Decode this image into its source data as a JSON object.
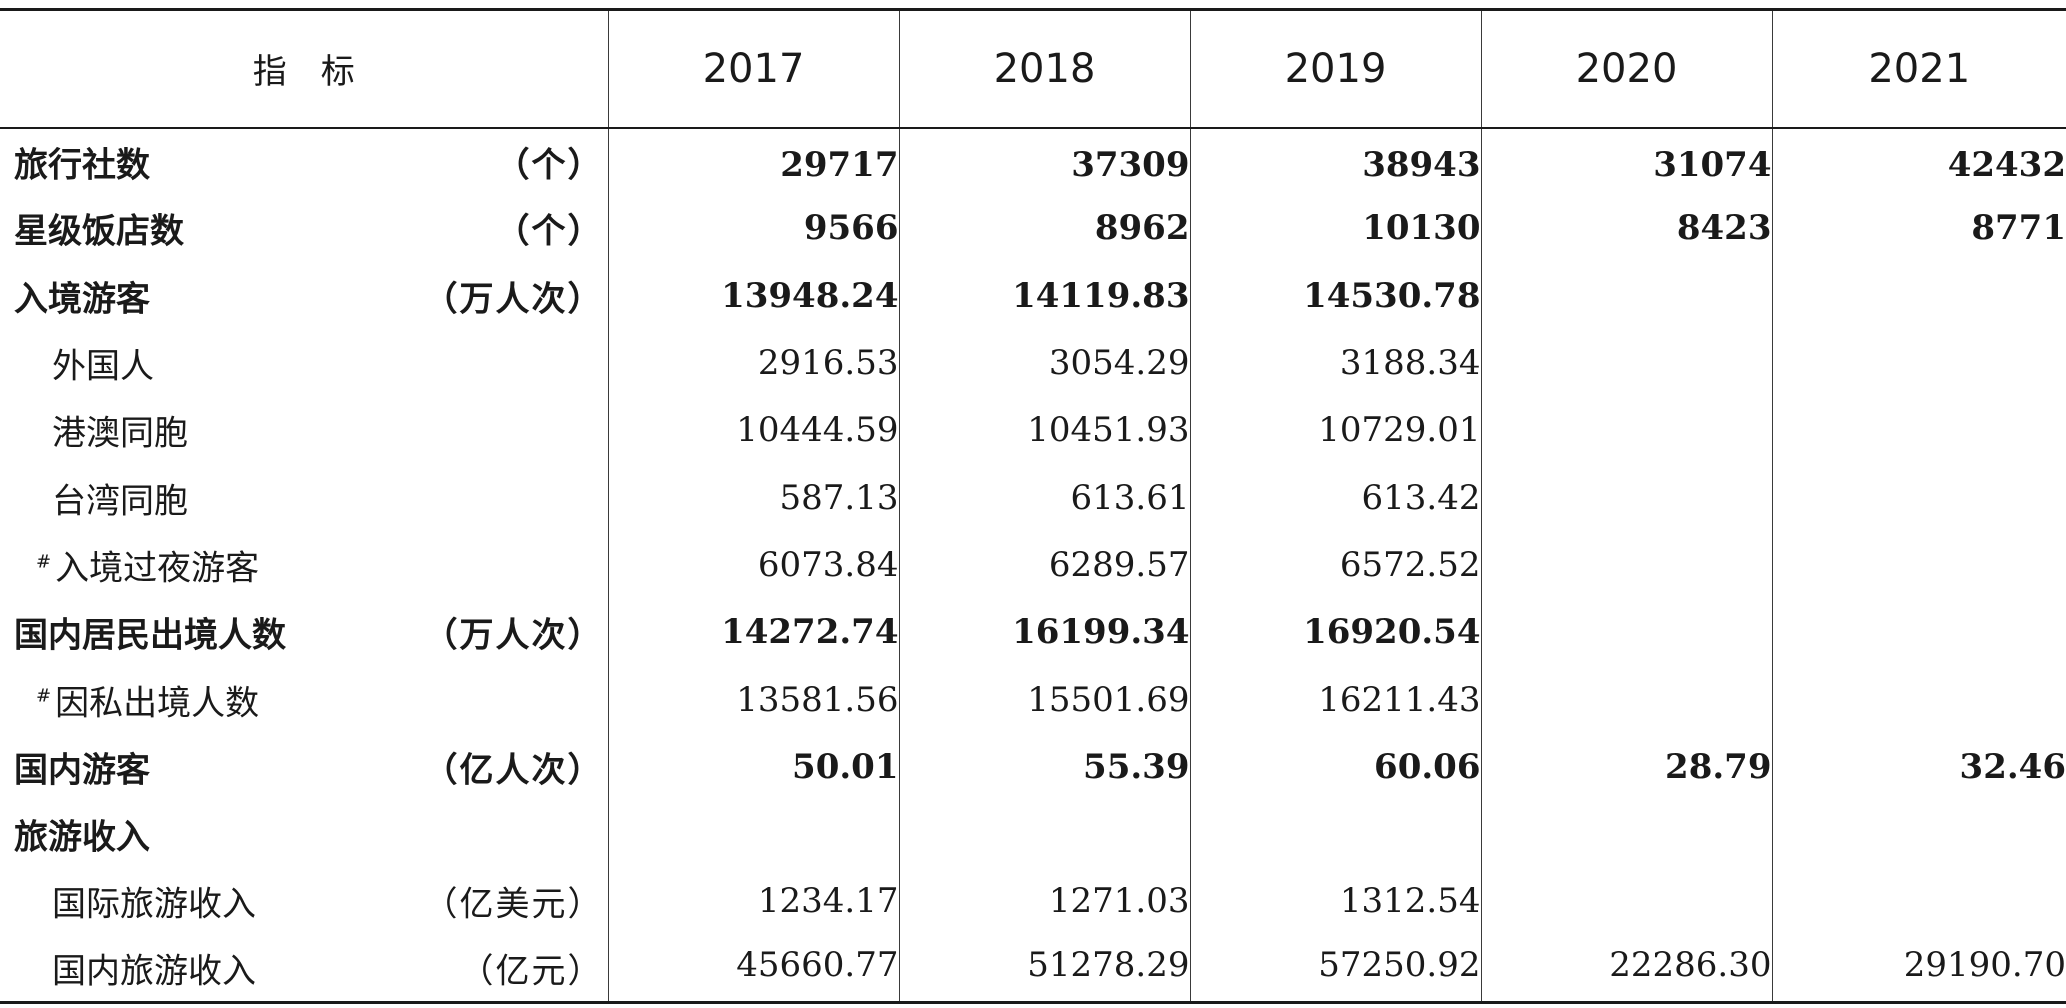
{
  "table": {
    "header": {
      "indicator": "指标",
      "years": [
        "2017",
        "2018",
        "2019",
        "2020",
        "2021"
      ]
    },
    "rows": [
      {
        "name": "旅行社数",
        "unit": "（个）",
        "bold": true,
        "sub": false,
        "hash": false,
        "values": [
          "29717",
          "37309",
          "38943",
          "31074",
          "42432"
        ]
      },
      {
        "name": "星级饭店数",
        "unit": "（个）",
        "bold": true,
        "sub": false,
        "hash": false,
        "values": [
          "9566",
          "8962",
          "10130",
          "8423",
          "8771"
        ]
      },
      {
        "name": "入境游客",
        "unit": "（万人次）",
        "bold": true,
        "sub": false,
        "hash": false,
        "values": [
          "13948.24",
          "14119.83",
          "14530.78",
          "",
          ""
        ]
      },
      {
        "name": "外国人",
        "unit": "",
        "bold": false,
        "sub": true,
        "hash": false,
        "values": [
          "2916.53",
          "3054.29",
          "3188.34",
          "",
          ""
        ]
      },
      {
        "name": "港澳同胞",
        "unit": "",
        "bold": false,
        "sub": true,
        "hash": false,
        "values": [
          "10444.59",
          "10451.93",
          "10729.01",
          "",
          ""
        ]
      },
      {
        "name": "台湾同胞",
        "unit": "",
        "bold": false,
        "sub": true,
        "hash": false,
        "values": [
          "587.13",
          "613.61",
          "613.42",
          "",
          ""
        ]
      },
      {
        "name": "入境过夜游客",
        "unit": "",
        "bold": false,
        "sub": true,
        "hash": true,
        "values": [
          "6073.84",
          "6289.57",
          "6572.52",
          "",
          ""
        ]
      },
      {
        "name": "国内居民出境人数",
        "unit": "（万人次）",
        "bold": true,
        "sub": false,
        "hash": false,
        "values": [
          "14272.74",
          "16199.34",
          "16920.54",
          "",
          ""
        ]
      },
      {
        "name": "因私出境人数",
        "unit": "",
        "bold": false,
        "sub": true,
        "hash": true,
        "values": [
          "13581.56",
          "15501.69",
          "16211.43",
          "",
          ""
        ]
      },
      {
        "name": "国内游客",
        "unit": "（亿人次）",
        "bold": true,
        "sub": false,
        "hash": false,
        "values": [
          "50.01",
          "55.39",
          "60.06",
          "28.79",
          "32.46"
        ]
      },
      {
        "name": "旅游收入",
        "unit": "",
        "bold": true,
        "sub": false,
        "hash": false,
        "values": [
          "",
          "",
          "",
          "",
          ""
        ]
      },
      {
        "name": "国际旅游收入",
        "unit": "（亿美元）",
        "bold": false,
        "sub": true,
        "hash": false,
        "values": [
          "1234.17",
          "1271.03",
          "1312.54",
          "",
          ""
        ]
      },
      {
        "name": "国内旅游收入",
        "unit": "（亿元）",
        "bold": false,
        "sub": true,
        "hash": false,
        "values": [
          "45660.77",
          "51278.29",
          "57250.92",
          "22286.30",
          "29190.70"
        ]
      }
    ]
  }
}
